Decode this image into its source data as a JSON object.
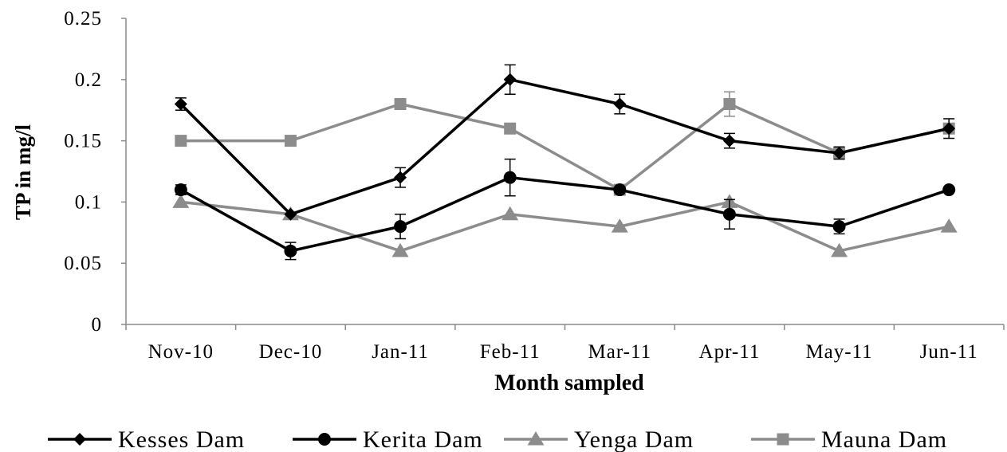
{
  "chart_data": {
    "type": "line",
    "title": "",
    "xlabel": "Month sampled",
    "ylabel": "TP in mg/l",
    "categories": [
      "Nov-10",
      "Dec-10",
      "Jan-11",
      "Feb-11",
      "Mar-11",
      "Apr-11",
      "May-11",
      "Jun-11"
    ],
    "ylim": [
      0,
      0.25
    ],
    "yticks": [
      "0",
      "0.05",
      "0.1",
      "0.15",
      "0.2",
      "0.25"
    ],
    "grid": false,
    "legend_position": "bottom",
    "series": [
      {
        "name": "Kesses Dam",
        "color": "#000000",
        "marker": "diamond",
        "values": [
          0.18,
          0.09,
          0.12,
          0.2,
          0.18,
          0.15,
          0.14,
          0.16
        ],
        "errors": [
          0.005,
          0.0,
          0.008,
          0.012,
          0.008,
          0.006,
          0.005,
          0.008
        ]
      },
      {
        "name": "Kerita Dam",
        "color": "#000000",
        "marker": "circle",
        "values": [
          0.11,
          0.06,
          0.08,
          0.12,
          0.11,
          0.09,
          0.08,
          0.11
        ],
        "errors": [
          0.004,
          0.007,
          0.01,
          0.015,
          0.0,
          0.012,
          0.006,
          0.0
        ]
      },
      {
        "name": "Yenga Dam",
        "color": "#8c8c8c",
        "marker": "triangle",
        "values": [
          0.1,
          0.09,
          0.06,
          0.09,
          0.08,
          0.1,
          0.06,
          0.08
        ],
        "errors": [
          0,
          0,
          0,
          0,
          0,
          0,
          0,
          0
        ]
      },
      {
        "name": "Mauna Dam",
        "color": "#8c8c8c",
        "marker": "square",
        "values": [
          0.15,
          0.15,
          0.18,
          0.16,
          0.11,
          0.18,
          0.14,
          0.16
        ],
        "errors": [
          0,
          0,
          0,
          0,
          0,
          0.01,
          0,
          0
        ]
      }
    ]
  }
}
